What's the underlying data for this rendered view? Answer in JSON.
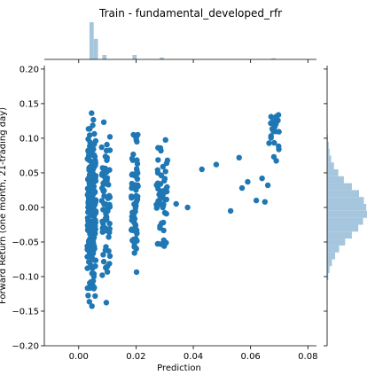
{
  "colors": {
    "scatter": "#1f77b4",
    "histogram": "#a6c6dd",
    "axis": "#000000"
  },
  "chart_data": {
    "type": "scatter",
    "title": "Train - fundamental_developed_rfr",
    "xlabel": "Prediction",
    "ylabel": "Forward Return (one month, 21-trading day)",
    "xlim": [
      -0.012,
      0.083
    ],
    "ylim": [
      -0.2,
      0.205
    ],
    "xticks": [
      "0.00",
      "0.02",
      "0.04",
      "0.06",
      "0.08"
    ],
    "yticks": [
      "0.20",
      "0.15",
      "0.10",
      "0.05",
      "0.00",
      "−0.05",
      "−0.10",
      "−0.15",
      "−0.20"
    ],
    "grid": false,
    "marginal_histograms": true,
    "clusters": [
      {
        "x_center": 0.0045,
        "x_spread": 0.0015,
        "y_range": [
          -0.17,
          0.17
        ],
        "count": 220
      },
      {
        "x_center": 0.0095,
        "x_spread": 0.0015,
        "y_range": [
          -0.16,
          0.16
        ],
        "count": 70
      },
      {
        "x_center": 0.0195,
        "x_spread": 0.0012,
        "y_range": [
          -0.12,
          0.155
        ],
        "count": 70
      },
      {
        "x_center": 0.029,
        "x_spread": 0.002,
        "y_range": [
          -0.08,
          0.12
        ],
        "count": 60
      },
      {
        "x_center": 0.068,
        "x_spread": 0.002,
        "y_range": [
          0.05,
          0.17
        ],
        "count": 22
      }
    ],
    "sparse_points": [
      {
        "x": 0.034,
        "y": 0.005
      },
      {
        "x": 0.038,
        "y": 0.0
      },
      {
        "x": 0.043,
        "y": 0.055
      },
      {
        "x": 0.048,
        "y": 0.062
      },
      {
        "x": 0.053,
        "y": -0.005
      },
      {
        "x": 0.056,
        "y": 0.072
      },
      {
        "x": 0.057,
        "y": 0.028
      },
      {
        "x": 0.059,
        "y": 0.037
      },
      {
        "x": 0.062,
        "y": 0.01
      },
      {
        "x": 0.064,
        "y": 0.042
      },
      {
        "x": 0.066,
        "y": 0.032
      },
      {
        "x": 0.065,
        "y": 0.008
      }
    ],
    "x_histogram": [
      {
        "x": 0.0045,
        "height": 1.0
      },
      {
        "x": 0.006,
        "height": 0.55
      },
      {
        "x": 0.009,
        "height": 0.12
      },
      {
        "x": 0.0195,
        "height": 0.12
      },
      {
        "x": 0.029,
        "height": 0.05
      },
      {
        "x": 0.068,
        "height": 0.03
      }
    ],
    "y_histogram": [
      {
        "y": -0.1,
        "width": 0.03
      },
      {
        "y": -0.09,
        "width": 0.06
      },
      {
        "y": -0.08,
        "width": 0.12
      },
      {
        "y": -0.07,
        "width": 0.2
      },
      {
        "y": -0.06,
        "width": 0.3
      },
      {
        "y": -0.05,
        "width": 0.45
      },
      {
        "y": -0.04,
        "width": 0.62
      },
      {
        "y": -0.03,
        "width": 0.78
      },
      {
        "y": -0.02,
        "width": 0.9
      },
      {
        "y": -0.01,
        "width": 1.0
      },
      {
        "y": 0.0,
        "width": 0.98
      },
      {
        "y": 0.01,
        "width": 0.92
      },
      {
        "y": 0.02,
        "width": 0.8
      },
      {
        "y": 0.03,
        "width": 0.62
      },
      {
        "y": 0.04,
        "width": 0.42
      },
      {
        "y": 0.05,
        "width": 0.28
      },
      {
        "y": 0.06,
        "width": 0.17
      },
      {
        "y": 0.07,
        "width": 0.1
      },
      {
        "y": 0.08,
        "width": 0.06
      },
      {
        "y": 0.09,
        "width": 0.04
      },
      {
        "y": 0.1,
        "width": 0.02
      },
      {
        "y": 0.11,
        "width": 0.01
      },
      {
        "y": 0.12,
        "width": 0.005
      }
    ]
  }
}
